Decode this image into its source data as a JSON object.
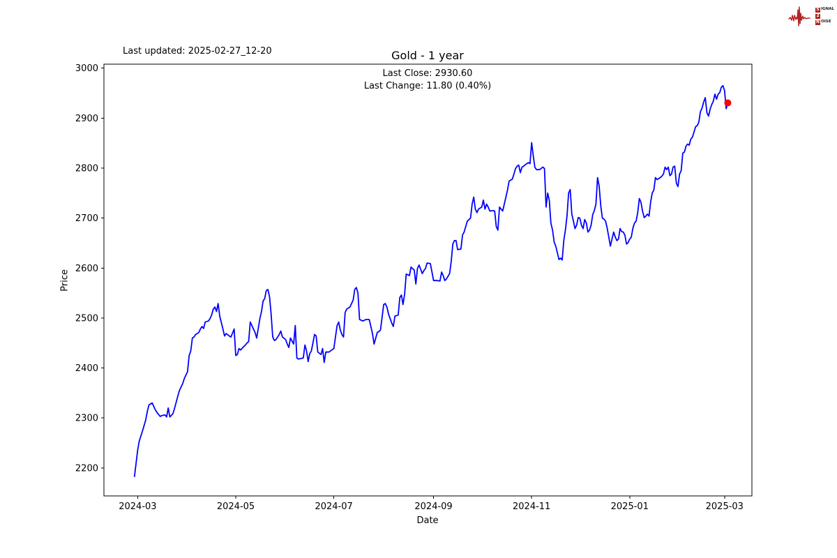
{
  "header": {
    "last_updated": "Last updated: 2025-02-27_12-20",
    "title": "Gold - 1 year",
    "last_close_line": "Last Close: 2930.60",
    "last_change_line": "Last Change: 11.80 (0.40%)"
  },
  "logo": {
    "rows": [
      {
        "initial": "S",
        "rest": "IGNAL"
      },
      {
        "initial": "2",
        "rest": ""
      },
      {
        "initial": "N",
        "rest": "OISE"
      }
    ],
    "color": "#b22222"
  },
  "chart_data": {
    "type": "line",
    "title": "Gold - 1 year",
    "xlabel": "Date",
    "ylabel": "Price",
    "line_color": "#0000ff",
    "marker_color": "#ff0000",
    "last_close": 2930.6,
    "last_change": 11.8,
    "last_change_pct": 0.4,
    "grid": false,
    "legend": "none",
    "x_start_date": "2024-02-28",
    "yticks": [
      2200,
      2300,
      2400,
      2500,
      2600,
      2700,
      2800,
      2900,
      3000
    ],
    "ylim": [
      2144,
      3008
    ],
    "xlim_days": [
      -19,
      384
    ],
    "xticks": [
      {
        "label": "2024-03",
        "day": 2
      },
      {
        "label": "2024-05",
        "day": 63
      },
      {
        "label": "2024-07",
        "day": 124
      },
      {
        "label": "2024-09",
        "day": 186
      },
      {
        "label": "2024-11",
        "day": 247
      },
      {
        "label": "2025-01",
        "day": 308
      },
      {
        "label": "2025-03",
        "day": 367
      }
    ],
    "points": [
      [
        0,
        2183
      ],
      [
        2,
        2236
      ],
      [
        3,
        2254
      ],
      [
        5,
        2274
      ],
      [
        7,
        2296
      ],
      [
        8,
        2313
      ],
      [
        9,
        2326
      ],
      [
        11,
        2330
      ],
      [
        13,
        2316
      ],
      [
        14,
        2311
      ],
      [
        16,
        2303
      ],
      [
        17,
        2305
      ],
      [
        19,
        2306
      ],
      [
        20,
        2302
      ],
      [
        21,
        2320
      ],
      [
        22,
        2302
      ],
      [
        24,
        2309
      ],
      [
        25,
        2320
      ],
      [
        27,
        2344
      ],
      [
        28,
        2355
      ],
      [
        30,
        2369
      ],
      [
        31,
        2379
      ],
      [
        33,
        2393
      ],
      [
        34,
        2425
      ],
      [
        35,
        2434
      ],
      [
        36,
        2460
      ],
      [
        37,
        2462
      ],
      [
        38,
        2467
      ],
      [
        40,
        2471
      ],
      [
        41,
        2478
      ],
      [
        42,
        2483
      ],
      [
        43,
        2479
      ],
      [
        44,
        2492
      ],
      [
        46,
        2494
      ],
      [
        47,
        2499
      ],
      [
        48,
        2506
      ],
      [
        49,
        2518
      ],
      [
        50,
        2522
      ],
      [
        51,
        2513
      ],
      [
        52,
        2529
      ],
      [
        53,
        2504
      ],
      [
        55,
        2478
      ],
      [
        56,
        2464
      ],
      [
        57,
        2469
      ],
      [
        59,
        2464
      ],
      [
        60,
        2462
      ],
      [
        62,
        2478
      ],
      [
        63,
        2425
      ],
      [
        64,
        2427
      ],
      [
        65,
        2439
      ],
      [
        66,
        2436
      ],
      [
        68,
        2443
      ],
      [
        69,
        2446
      ],
      [
        70,
        2450
      ],
      [
        71,
        2453
      ],
      [
        72,
        2492
      ],
      [
        74,
        2478
      ],
      [
        75,
        2471
      ],
      [
        76,
        2460
      ],
      [
        78,
        2499
      ],
      [
        79,
        2513
      ],
      [
        80,
        2534
      ],
      [
        81,
        2539
      ],
      [
        82,
        2555
      ],
      [
        83,
        2557
      ],
      [
        84,
        2543
      ],
      [
        85,
        2508
      ],
      [
        86,
        2462
      ],
      [
        87,
        2455
      ],
      [
        88,
        2457
      ],
      [
        90,
        2467
      ],
      [
        91,
        2474
      ],
      [
        92,
        2462
      ],
      [
        94,
        2457
      ],
      [
        95,
        2448
      ],
      [
        96,
        2441
      ],
      [
        97,
        2460
      ],
      [
        99,
        2448
      ],
      [
        100,
        2485
      ],
      [
        101,
        2420
      ],
      [
        102,
        2418
      ],
      [
        105,
        2420
      ],
      [
        106,
        2446
      ],
      [
        107,
        2434
      ],
      [
        108,
        2413
      ],
      [
        109,
        2429
      ],
      [
        110,
        2434
      ],
      [
        112,
        2467
      ],
      [
        113,
        2464
      ],
      [
        114,
        2432
      ],
      [
        116,
        2427
      ],
      [
        117,
        2439
      ],
      [
        118,
        2411
      ],
      [
        119,
        2432
      ],
      [
        121,
        2432
      ],
      [
        124,
        2439
      ],
      [
        126,
        2485
      ],
      [
        127,
        2492
      ],
      [
        128,
        2476
      ],
      [
        129,
        2467
      ],
      [
        130,
        2462
      ],
      [
        131,
        2511
      ],
      [
        132,
        2518
      ],
      [
        134,
        2522
      ],
      [
        136,
        2536
      ],
      [
        137,
        2557
      ],
      [
        138,
        2561
      ],
      [
        139,
        2550
      ],
      [
        140,
        2497
      ],
      [
        142,
        2494
      ],
      [
        144,
        2497
      ],
      [
        146,
        2497
      ],
      [
        148,
        2469
      ],
      [
        149,
        2448
      ],
      [
        151,
        2471
      ],
      [
        152,
        2473
      ],
      [
        153,
        2476
      ],
      [
        155,
        2527
      ],
      [
        156,
        2529
      ],
      [
        157,
        2522
      ],
      [
        158,
        2508
      ],
      [
        160,
        2490
      ],
      [
        161,
        2483
      ],
      [
        162,
        2504
      ],
      [
        164,
        2506
      ],
      [
        165,
        2541
      ],
      [
        166,
        2546
      ],
      [
        167,
        2527
      ],
      [
        168,
        2548
      ],
      [
        169,
        2588
      ],
      [
        171,
        2585
      ],
      [
        172,
        2602
      ],
      [
        174,
        2596
      ],
      [
        175,
        2568
      ],
      [
        176,
        2599
      ],
      [
        177,
        2606
      ],
      [
        179,
        2589
      ],
      [
        180,
        2595
      ],
      [
        181,
        2599
      ],
      [
        182,
        2610
      ],
      [
        184,
        2609
      ],
      [
        185,
        2592
      ],
      [
        186,
        2575
      ],
      [
        188,
        2575
      ],
      [
        190,
        2574
      ],
      [
        191,
        2592
      ],
      [
        192,
        2585
      ],
      [
        193,
        2575
      ],
      [
        194,
        2578
      ],
      [
        196,
        2589
      ],
      [
        197,
        2613
      ],
      [
        198,
        2648
      ],
      [
        199,
        2655
      ],
      [
        200,
        2655
      ],
      [
        201,
        2637
      ],
      [
        203,
        2638
      ],
      [
        204,
        2666
      ],
      [
        205,
        2672
      ],
      [
        207,
        2694
      ],
      [
        209,
        2700
      ],
      [
        210,
        2728
      ],
      [
        211,
        2742
      ],
      [
        212,
        2718
      ],
      [
        213,
        2711
      ],
      [
        214,
        2718
      ],
      [
        216,
        2722
      ],
      [
        217,
        2736
      ],
      [
        218,
        2718
      ],
      [
        219,
        2728
      ],
      [
        220,
        2722
      ],
      [
        221,
        2714
      ],
      [
        223,
        2715
      ],
      [
        224,
        2714
      ],
      [
        225,
        2683
      ],
      [
        226,
        2676
      ],
      [
        227,
        2722
      ],
      [
        228,
        2718
      ],
      [
        229,
        2714
      ],
      [
        230,
        2728
      ],
      [
        232,
        2756
      ],
      [
        233,
        2774
      ],
      [
        235,
        2778
      ],
      [
        236,
        2788
      ],
      [
        237,
        2799
      ],
      [
        238,
        2804
      ],
      [
        239,
        2806
      ],
      [
        240,
        2791
      ],
      [
        241,
        2802
      ],
      [
        242,
        2804
      ],
      [
        244,
        2809
      ],
      [
        245,
        2811
      ],
      [
        246,
        2809
      ],
      [
        247,
        2851
      ],
      [
        248,
        2825
      ],
      [
        249,
        2802
      ],
      [
        250,
        2797
      ],
      [
        252,
        2797
      ],
      [
        254,
        2802
      ],
      [
        255,
        2799
      ],
      [
        256,
        2722
      ],
      [
        257,
        2750
      ],
      [
        258,
        2736
      ],
      [
        259,
        2690
      ],
      [
        260,
        2676
      ],
      [
        261,
        2652
      ],
      [
        262,
        2644
      ],
      [
        264,
        2617
      ],
      [
        265,
        2620
      ],
      [
        266,
        2616
      ],
      [
        267,
        2655
      ],
      [
        268,
        2676
      ],
      [
        269,
        2704
      ],
      [
        270,
        2750
      ],
      [
        271,
        2757
      ],
      [
        272,
        2708
      ],
      [
        273,
        2694
      ],
      [
        274,
        2679
      ],
      [
        275,
        2686
      ],
      [
        276,
        2701
      ],
      [
        277,
        2700
      ],
      [
        278,
        2686
      ],
      [
        279,
        2679
      ],
      [
        280,
        2697
      ],
      [
        281,
        2690
      ],
      [
        282,
        2672
      ],
      [
        283,
        2676
      ],
      [
        284,
        2686
      ],
      [
        285,
        2707
      ],
      [
        286,
        2715
      ],
      [
        287,
        2728
      ],
      [
        288,
        2781
      ],
      [
        289,
        2764
      ],
      [
        290,
        2725
      ],
      [
        291,
        2700
      ],
      [
        292,
        2698
      ],
      [
        293,
        2694
      ],
      [
        294,
        2680
      ],
      [
        295,
        2662
      ],
      [
        296,
        2644
      ],
      [
        297,
        2658
      ],
      [
        298,
        2672
      ],
      [
        299,
        2662
      ],
      [
        300,
        2655
      ],
      [
        301,
        2658
      ],
      [
        302,
        2679
      ],
      [
        303,
        2673
      ],
      [
        304,
        2672
      ],
      [
        305,
        2666
      ],
      [
        306,
        2648
      ],
      [
        307,
        2651
      ],
      [
        308,
        2658
      ],
      [
        309,
        2662
      ],
      [
        310,
        2680
      ],
      [
        311,
        2690
      ],
      [
        312,
        2694
      ],
      [
        313,
        2711
      ],
      [
        314,
        2739
      ],
      [
        315,
        2732
      ],
      [
        316,
        2714
      ],
      [
        317,
        2701
      ],
      [
        318,
        2704
      ],
      [
        319,
        2708
      ],
      [
        320,
        2704
      ],
      [
        321,
        2732
      ],
      [
        322,
        2750
      ],
      [
        323,
        2756
      ],
      [
        324,
        2781
      ],
      [
        325,
        2777
      ],
      [
        327,
        2781
      ],
      [
        328,
        2784
      ],
      [
        329,
        2788
      ],
      [
        330,
        2802
      ],
      [
        331,
        2797
      ],
      [
        332,
        2802
      ],
      [
        333,
        2785
      ],
      [
        334,
        2788
      ],
      [
        335,
        2802
      ],
      [
        336,
        2804
      ],
      [
        337,
        2770
      ],
      [
        338,
        2763
      ],
      [
        339,
        2788
      ],
      [
        340,
        2795
      ],
      [
        341,
        2830
      ],
      [
        342,
        2832
      ],
      [
        343,
        2844
      ],
      [
        344,
        2848
      ],
      [
        345,
        2846
      ],
      [
        346,
        2858
      ],
      [
        347,
        2862
      ],
      [
        348,
        2872
      ],
      [
        349,
        2883
      ],
      [
        350,
        2885
      ],
      [
        351,
        2892
      ],
      [
        352,
        2913
      ],
      [
        353,
        2920
      ],
      [
        354,
        2932
      ],
      [
        355,
        2941
      ],
      [
        356,
        2911
      ],
      [
        357,
        2904
      ],
      [
        358,
        2918
      ],
      [
        359,
        2927
      ],
      [
        360,
        2934
      ],
      [
        361,
        2948
      ],
      [
        362,
        2938
      ],
      [
        363,
        2948
      ],
      [
        364,
        2951
      ],
      [
        365,
        2962
      ],
      [
        366,
        2965
      ],
      [
        367,
        2955
      ],
      [
        368,
        2918.8
      ],
      [
        369,
        2930.6
      ]
    ]
  }
}
